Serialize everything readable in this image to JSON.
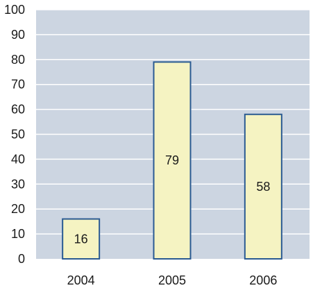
{
  "chart_data": {
    "type": "bar",
    "categories": [
      "2004",
      "2005",
      "2006"
    ],
    "values": [
      16,
      79,
      58
    ],
    "data_labels": [
      "16",
      "79",
      "58"
    ],
    "title": "",
    "xlabel": "",
    "ylabel": "",
    "ylim": [
      0,
      100
    ],
    "yticks": [
      0,
      10,
      20,
      30,
      40,
      50,
      60,
      70,
      80,
      90,
      100
    ],
    "grid": true,
    "legend": "none",
    "colors": {
      "plot_background": "#ccd5e1",
      "gridline": "#ffffff",
      "bar_fill": "#f5f3c2",
      "bar_stroke": "#2a5a92"
    }
  }
}
